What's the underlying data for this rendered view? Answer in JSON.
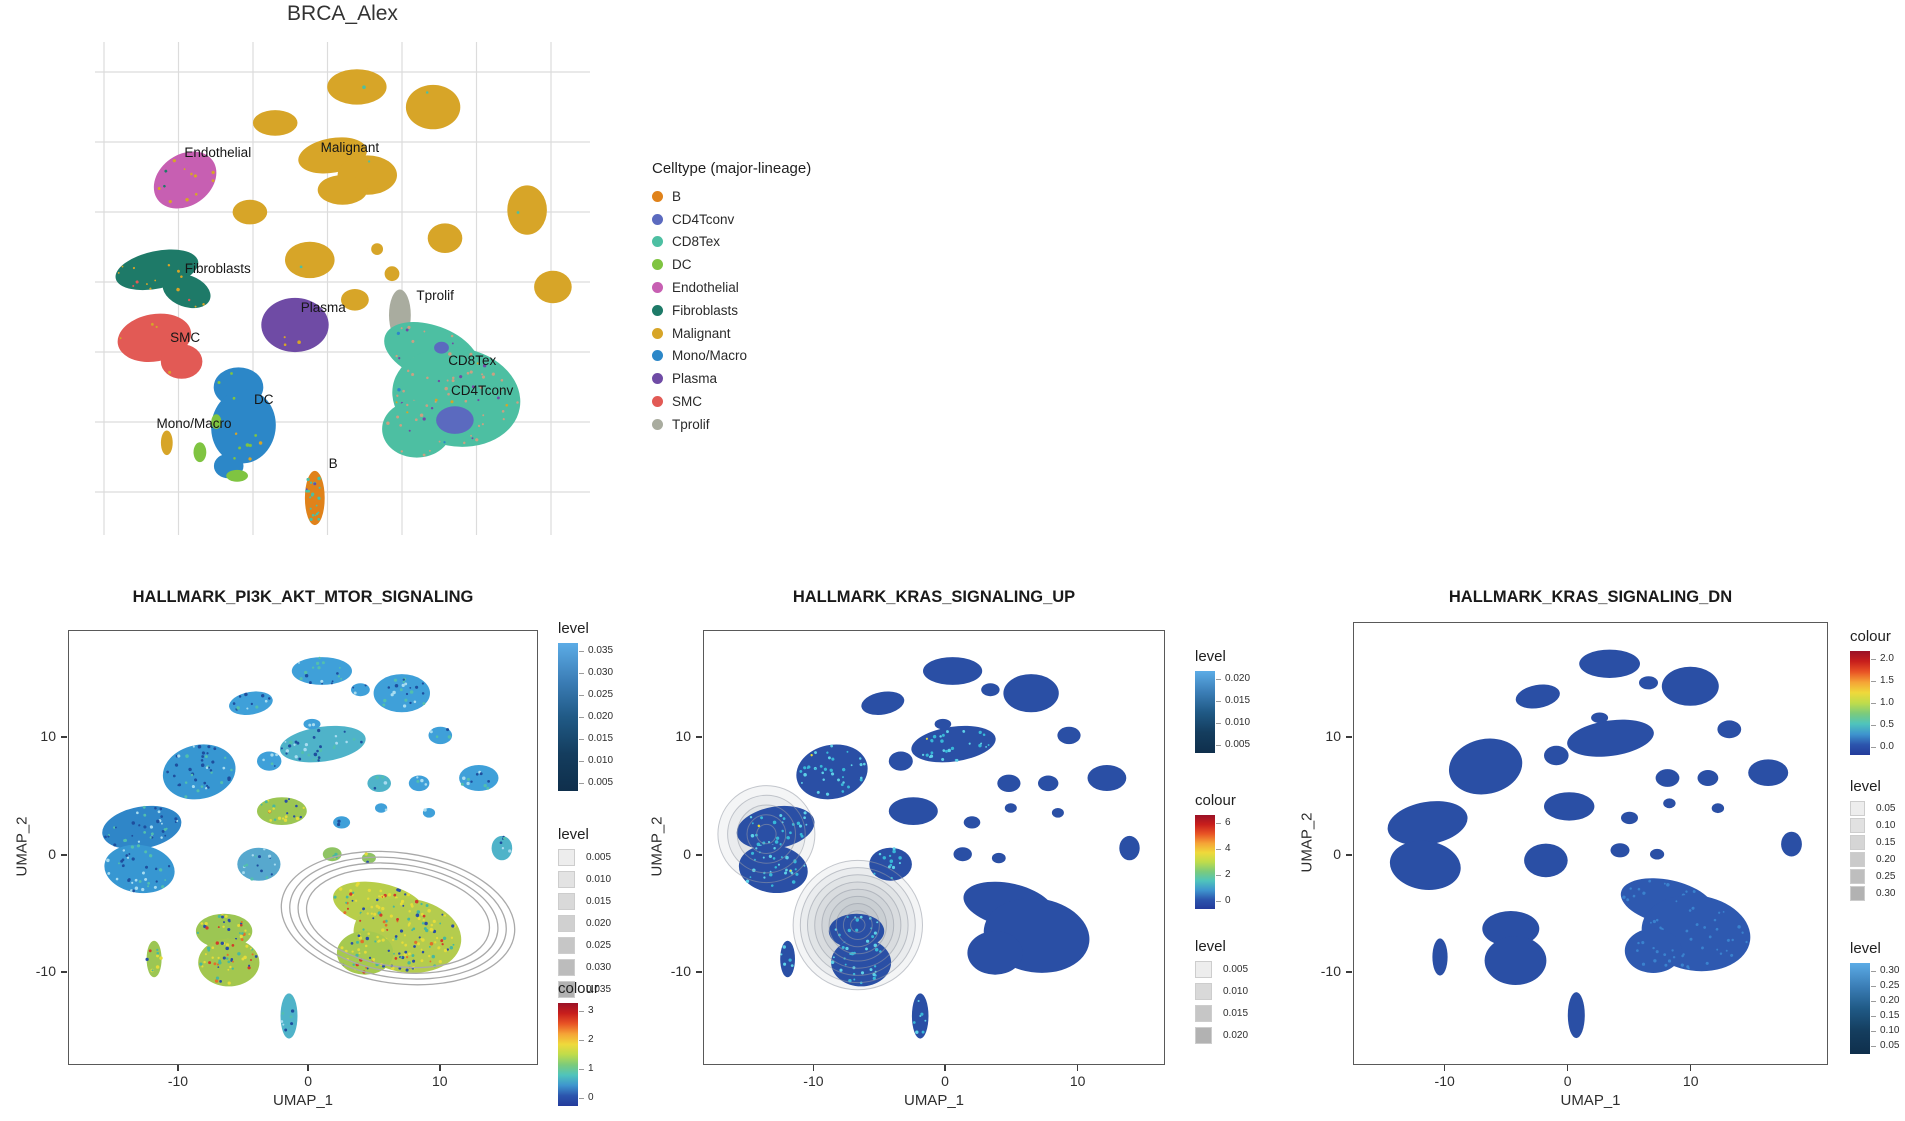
{
  "colors": {
    "hallmark_base": "#2A4FA5",
    "hallmark_light": "#2E59B0",
    "speckle_cyan": "#38B8D8",
    "grid": "#DCDCDC",
    "panel_border": "#595959",
    "contour_grey": "#A9A9A9",
    "blue_gradient": [
      "#5CACE6",
      "#3C7FB8",
      "#205A86",
      "#143D5E",
      "#0F2F4C"
    ],
    "rainbow_gradient": [
      "#9A1127",
      "#C81E1C",
      "#E85325",
      "#F5A336",
      "#EFD93B",
      "#BFDC4B",
      "#7CCB7B",
      "#4FC4BC",
      "#3E95CE",
      "#2C55AD",
      "#243B9B"
    ],
    "grey_swatch": [
      "#EDEDED",
      "#B2B2B2"
    ]
  },
  "chart_data": {
    "type": "scatter",
    "panels": [
      {
        "type": "scatter",
        "title": "BRCA_Alex",
        "legend_title": "Celltype (major-lineage)",
        "grid": true,
        "celltypes": [
          {
            "name": "B",
            "color": "#E0821A"
          },
          {
            "name": "CD4Tconv",
            "color": "#5B6ABF"
          },
          {
            "name": "CD8Tex",
            "color": "#4DBFA2"
          },
          {
            "name": "DC",
            "color": "#7FC441"
          },
          {
            "name": "Endothelial",
            "color": "#C75FB2"
          },
          {
            "name": "Fibroblasts",
            "color": "#1E7A68"
          },
          {
            "name": "Malignant",
            "color": "#D7A528"
          },
          {
            "name": "Mono/Macro",
            "color": "#2C87C8"
          },
          {
            "name": "Plasma",
            "color": "#6F4BA5"
          },
          {
            "name": "SMC",
            "color": "#E25A55"
          },
          {
            "name": "Tprolif",
            "color": "#A9AC9F"
          }
        ],
        "clusters": [
          {
            "celltype": "Malignant",
            "parts": [
              [
                0.529,
                0.091,
                0.06,
                0.036,
                0
              ],
              [
                0.683,
                0.132,
                0.055,
                0.045,
                0
              ],
              [
                0.364,
                0.164,
                0.045,
                0.026,
                0
              ],
              [
                0.873,
                0.341,
                0.04,
                0.05,
                0
              ],
              [
                0.48,
                0.23,
                0.07,
                0.035,
                -10
              ],
              [
                0.55,
                0.27,
                0.06,
                0.04,
                0
              ],
              [
                0.5,
                0.3,
                0.05,
                0.03,
                0
              ],
              [
                0.313,
                0.345,
                0.035,
                0.025,
                0
              ],
              [
                0.434,
                0.442,
                0.05,
                0.037,
                0
              ],
              [
                0.525,
                0.523,
                0.028,
                0.022,
                0
              ],
              [
                0.925,
                0.497,
                0.038,
                0.033,
                0
              ],
              [
                0.707,
                0.398,
                0.035,
                0.03,
                0
              ],
              [
                0.145,
                0.813,
                0.012,
                0.025,
                0
              ],
              [
                0.6,
                0.47,
                0.015,
                0.015,
                0
              ],
              [
                0.57,
                0.42,
                0.012,
                0.012,
                0
              ]
            ],
            "spk": [
              [
                "#4DBFA2",
                6
              ],
              [
                "#E25A55",
                4
              ]
            ]
          },
          {
            "celltype": "Endothelial",
            "parts": [
              [
                0.182,
                0.28,
                0.068,
                0.052,
                -35
              ]
            ],
            "spk": [
              [
                "#D7A528",
                10
              ],
              [
                "#1E7A68",
                2
              ]
            ]
          },
          {
            "celltype": "Fibroblasts",
            "parts": [
              [
                0.125,
                0.462,
                0.085,
                0.038,
                -12
              ],
              [
                0.185,
                0.505,
                0.05,
                0.032,
                20
              ]
            ],
            "spk": [
              [
                "#D7A528",
                12
              ],
              [
                "#E25A55",
                4
              ]
            ]
          },
          {
            "celltype": "SMC",
            "parts": [
              [
                0.12,
                0.6,
                0.075,
                0.048,
                -10
              ],
              [
                0.175,
                0.648,
                0.042,
                0.035,
                0
              ]
            ],
            "spk": [
              [
                "#D7A528",
                4
              ]
            ]
          },
          {
            "celltype": "Plasma",
            "parts": [
              [
                0.404,
                0.574,
                0.068,
                0.055,
                0
              ]
            ],
            "spk": [
              [
                "#D7A528",
                3
              ]
            ]
          },
          {
            "celltype": "Tprolif",
            "parts": [
              [
                0.616,
                0.554,
                0.022,
                0.052,
                0
              ]
            ],
            "spk": []
          },
          {
            "celltype": "CD8Tex",
            "parts": [
              [
                0.68,
                0.63,
                0.1,
                0.055,
                20
              ],
              [
                0.73,
                0.72,
                0.13,
                0.1,
                10
              ],
              [
                0.65,
                0.785,
                0.07,
                0.058,
                0
              ]
            ],
            "spk": [
              [
                "#C9A183",
                60
              ],
              [
                "#6F4BA5",
                15
              ],
              [
                "#D7A528",
                8
              ],
              [
                "#2C87C8",
                6
              ]
            ]
          },
          {
            "celltype": "CD4Tconv",
            "parts": [
              [
                0.727,
                0.767,
                0.038,
                0.028,
                0
              ],
              [
                0.7,
                0.62,
                0.015,
                0.012,
                0
              ]
            ],
            "spk": []
          },
          {
            "celltype": "Mono/Macro",
            "parts": [
              [
                0.29,
                0.7,
                0.05,
                0.04,
                0
              ],
              [
                0.3,
                0.78,
                0.065,
                0.075,
                8
              ],
              [
                0.27,
                0.86,
                0.03,
                0.025,
                0
              ]
            ],
            "spk": [
              [
                "#7FC441",
                8
              ],
              [
                "#D7A528",
                5
              ]
            ]
          },
          {
            "celltype": "DC",
            "parts": [
              [
                0.212,
                0.832,
                0.013,
                0.02,
                0
              ],
              [
                0.287,
                0.88,
                0.022,
                0.012,
                0
              ],
              [
                0.245,
                0.77,
                0.01,
                0.015,
                0
              ]
            ],
            "spk": []
          },
          {
            "celltype": "B",
            "parts": [
              [
                0.444,
                0.925,
                0.02,
                0.055,
                0
              ]
            ],
            "spk": [
              [
                "#4DBFA2",
                20
              ],
              [
                "#6F4BA5",
                2
              ]
            ]
          }
        ],
        "labels": [
          {
            "text": "Endothelial",
            "x": 0.248,
            "y": 0.233
          },
          {
            "text": "Malignant",
            "x": 0.515,
            "y": 0.223
          },
          {
            "text": "Fibroblasts",
            "x": 0.248,
            "y": 0.469
          },
          {
            "text": "SMC",
            "x": 0.182,
            "y": 0.609
          },
          {
            "text": "Plasma",
            "x": 0.461,
            "y": 0.548
          },
          {
            "text": "Tprolif",
            "x": 0.687,
            "y": 0.523
          },
          {
            "text": "CD8Tex",
            "x": 0.762,
            "y": 0.655
          },
          {
            "text": "CD4Tconv",
            "x": 0.782,
            "y": 0.716
          },
          {
            "text": "DC",
            "x": 0.341,
            "y": 0.734
          },
          {
            "text": "Mono/Macro",
            "x": 0.2,
            "y": 0.783
          },
          {
            "text": "B",
            "x": 0.481,
            "y": 0.864
          }
        ]
      },
      {
        "type": "scatter",
        "title": "HALLMARK_PI3K_AKT_MTOR_SIGNALING",
        "xlabel": "UMAP_1",
        "ylabel": "UMAP_2",
        "x_ticks": [
          "-10",
          "0",
          "10"
        ],
        "y_ticks": [
          "10",
          "0",
          "-10"
        ],
        "x_tick_fr": [
          0.234,
          0.511,
          0.791
        ],
        "y_tick_fr": [
          0.246,
          0.517,
          0.786
        ],
        "fills": [
          "#3FA0D9",
          "#3FA0D9",
          "#3FA0D9",
          "#4FB3C9",
          "#3797D2",
          "#3FA0D9",
          "#3FA0D9",
          "#3FA0D9",
          "#9CC653",
          "#2F86C8",
          "#3797D2",
          "#57A8CE",
          "#8FC463",
          "#4FB3C9",
          "#B8CE4A",
          "#B4CC4E",
          "#A6C94F",
          "#9CC653",
          "#A3C74F",
          "#9CC653",
          "#4FB3C9",
          "#8FC463",
          "#3FA0D9",
          "#3FA0D9",
          "#3FA0D9",
          "#3FA0D9",
          "#3FA0D9",
          "#4FB3C9",
          "#3FA0D9"
        ],
        "green_idx": [
          8,
          12,
          14,
          15,
          16,
          17,
          18,
          19,
          21
        ],
        "contour": {
          "kind": "rings",
          "cx": 0.7,
          "cy": 0.66,
          "rx": 0.25,
          "ry": 0.15,
          "rot": 8,
          "n": 4
        },
        "legends": [
          {
            "style": "blue",
            "title": "level",
            "ticks": [
              "0.035",
              "0.030",
              "0.025",
              "0.020",
              "0.015",
              "0.010",
              "0.005"
            ],
            "gap": 22
          },
          {
            "style": "grey",
            "title": "level",
            "ticks": [
              "0.005",
              "0.010",
              "0.015",
              "0.020",
              "0.025",
              "0.030",
              "0.035"
            ],
            "sq": 17,
            "gap": 5
          },
          {
            "style": "rainbow",
            "title": "colour",
            "ticks": [
              "3",
              "2",
              "1",
              "0"
            ],
            "gap": 29
          }
        ]
      },
      {
        "type": "scatter",
        "title": "HALLMARK_KRAS_SIGNALING_UP",
        "xlabel": "UMAP_1",
        "ylabel": "UMAP_2",
        "x_ticks": [
          "-10",
          "0",
          "10"
        ],
        "y_ticks": [
          "10",
          "0",
          "-10"
        ],
        "x_tick_fr": [
          0.239,
          0.524,
          0.811
        ],
        "y_tick_fr": [
          0.246,
          0.517,
          0.786
        ],
        "cyan_idx": [
          3,
          4,
          9,
          10,
          11,
          17,
          18,
          19,
          20
        ],
        "contour": {
          "kind": "bullseye",
          "spots": [
            {
              "cx": 0.135,
              "cy": 0.467,
              "r": 0.105,
              "n": 5
            },
            {
              "cx": 0.333,
              "cy": 0.676,
              "r": 0.14,
              "n": 9
            }
          ]
        },
        "legends": [
          {
            "style": "blue",
            "title": "level",
            "ticks": [
              "0.020",
              "0.015",
              "0.010",
              "0.005"
            ],
            "gap": 22
          },
          {
            "style": "rainbow",
            "title": "colour",
            "ticks": [
              "6",
              "4",
              "2",
              "0"
            ],
            "gap": 26
          },
          {
            "style": "grey",
            "title": "level",
            "ticks": [
              "0.005",
              "0.010",
              "0.015",
              "0.020"
            ],
            "sq": 17,
            "gap": 5
          }
        ]
      },
      {
        "type": "scatter",
        "title": "HALLMARK_KRAS_SIGNALING_DN",
        "xlabel": "UMAP_1",
        "ylabel": "UMAP_2",
        "x_ticks": [
          "-10",
          "0",
          "10"
        ],
        "y_ticks": [
          "10",
          "0",
          "-10"
        ],
        "x_tick_fr": [
          0.193,
          0.452,
          0.711
        ],
        "y_tick_fr": [
          0.26,
          0.526,
          0.79
        ],
        "light_idx": [
          14,
          15,
          16
        ],
        "legends": [
          {
            "style": "rainbow",
            "title": "colour",
            "ticks": [
              "2.0",
              "1.5",
              "1.0",
              "0.5",
              "0.0"
            ],
            "gap": 22
          },
          {
            "style": "grey",
            "title": "level",
            "ticks": [
              "0.05",
              "0.10",
              "0.15",
              "0.20",
              "0.25",
              "0.30"
            ],
            "sq": 15,
            "gap": 2
          },
          {
            "style": "blue",
            "title": "level",
            "ticks": [
              "0.30",
              "0.25",
              "0.20",
              "0.15",
              "0.10",
              "0.05"
            ],
            "gap": 15
          }
        ]
      }
    ],
    "hallmark_blobs": [
      [
        0.538,
        0.092,
        0.064,
        0.032,
        0
      ],
      [
        0.708,
        0.143,
        0.06,
        0.044,
        0
      ],
      [
        0.387,
        0.166,
        0.047,
        0.026,
        -10
      ],
      [
        0.54,
        0.26,
        0.092,
        0.04,
        -8
      ],
      [
        0.277,
        0.324,
        0.078,
        0.062,
        -12
      ],
      [
        0.426,
        0.299,
        0.026,
        0.022,
        0
      ],
      [
        0.745,
        0.35,
        0.022,
        0.018,
        0
      ],
      [
        0.872,
        0.338,
        0.042,
        0.03,
        0
      ],
      [
        0.453,
        0.414,
        0.053,
        0.032,
        0
      ],
      [
        0.155,
        0.452,
        0.085,
        0.048,
        -10
      ],
      [
        0.15,
        0.547,
        0.075,
        0.055,
        8
      ],
      [
        0.404,
        0.536,
        0.046,
        0.038,
        0
      ],
      [
        0.56,
        0.513,
        0.02,
        0.016,
        0
      ],
      [
        0.921,
        0.499,
        0.022,
        0.028,
        0
      ],
      [
        0.66,
        0.63,
        0.1,
        0.05,
        12
      ],
      [
        0.72,
        0.7,
        0.115,
        0.085,
        8
      ],
      [
        0.63,
        0.74,
        0.06,
        0.05,
        0
      ],
      [
        0.33,
        0.69,
        0.06,
        0.04,
        0
      ],
      [
        0.34,
        0.762,
        0.065,
        0.055,
        0
      ],
      [
        0.181,
        0.754,
        0.016,
        0.042,
        0
      ],
      [
        0.468,
        0.885,
        0.018,
        0.052,
        0
      ],
      [
        0.638,
        0.522,
        0.015,
        0.012,
        0
      ],
      [
        0.664,
        0.407,
        0.013,
        0.011,
        0
      ],
      [
        0.766,
        0.418,
        0.013,
        0.011,
        0
      ],
      [
        0.517,
        0.214,
        0.018,
        0.012,
        0
      ],
      [
        0.62,
        0.135,
        0.02,
        0.015,
        0
      ],
      [
        0.79,
        0.24,
        0.025,
        0.02,
        0
      ],
      [
        0.66,
        0.35,
        0.025,
        0.02,
        0
      ],
      [
        0.58,
        0.44,
        0.018,
        0.014,
        0
      ]
    ]
  }
}
